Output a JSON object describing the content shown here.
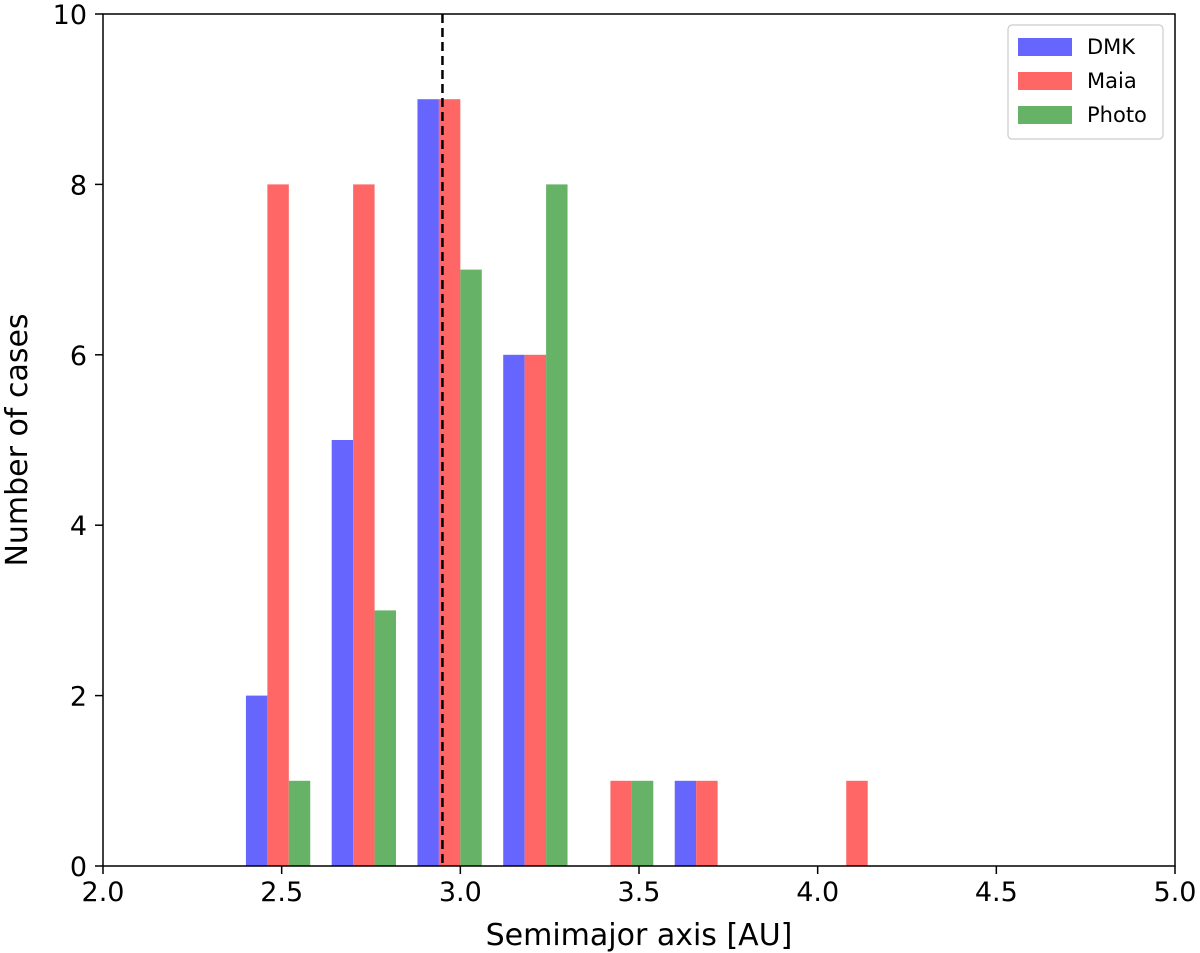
{
  "chart_data": {
    "type": "bar",
    "xlabel": "Semimajor axis [AU]",
    "ylabel": "Number of cases",
    "xlim": [
      2.0,
      5.0
    ],
    "ylim": [
      0,
      10
    ],
    "xticks": [
      "2.0",
      "2.5",
      "3.0",
      "3.5",
      "4.0",
      "4.5",
      "5.0"
    ],
    "yticks": [
      "0",
      "2",
      "4",
      "6",
      "8",
      "10"
    ],
    "grid": false,
    "legend_position": "top-right",
    "reference_line": {
      "x": 2.95,
      "style": "dashed",
      "color": "#000000"
    },
    "series": [
      {
        "name": "DMK",
        "color": "#6666ff",
        "bars": [
          {
            "x_start": 2.4,
            "x_end": 2.46,
            "value": 2
          },
          {
            "x_start": 2.64,
            "x_end": 2.7,
            "value": 5
          },
          {
            "x_start": 2.88,
            "x_end": 2.94,
            "value": 9
          },
          {
            "x_start": 3.12,
            "x_end": 3.18,
            "value": 6
          },
          {
            "x_start": 3.6,
            "x_end": 3.66,
            "value": 1
          }
        ]
      },
      {
        "name": "Maia",
        "color": "#ff6666",
        "bars": [
          {
            "x_start": 2.46,
            "x_end": 2.52,
            "value": 8
          },
          {
            "x_start": 2.7,
            "x_end": 2.76,
            "value": 8
          },
          {
            "x_start": 2.94,
            "x_end": 3.0,
            "value": 9
          },
          {
            "x_start": 3.18,
            "x_end": 3.24,
            "value": 6
          },
          {
            "x_start": 3.42,
            "x_end": 3.48,
            "value": 1
          },
          {
            "x_start": 3.66,
            "x_end": 3.72,
            "value": 1
          },
          {
            "x_start": 4.08,
            "x_end": 4.14,
            "value": 1
          }
        ]
      },
      {
        "name": "Photo",
        "color": "#66b266",
        "bars": [
          {
            "x_start": 2.52,
            "x_end": 2.58,
            "value": 1
          },
          {
            "x_start": 2.76,
            "x_end": 2.82,
            "value": 3
          },
          {
            "x_start": 3.0,
            "x_end": 3.06,
            "value": 7
          },
          {
            "x_start": 3.24,
            "x_end": 3.3,
            "value": 8
          },
          {
            "x_start": 3.48,
            "x_end": 3.54,
            "value": 1
          }
        ]
      }
    ]
  }
}
